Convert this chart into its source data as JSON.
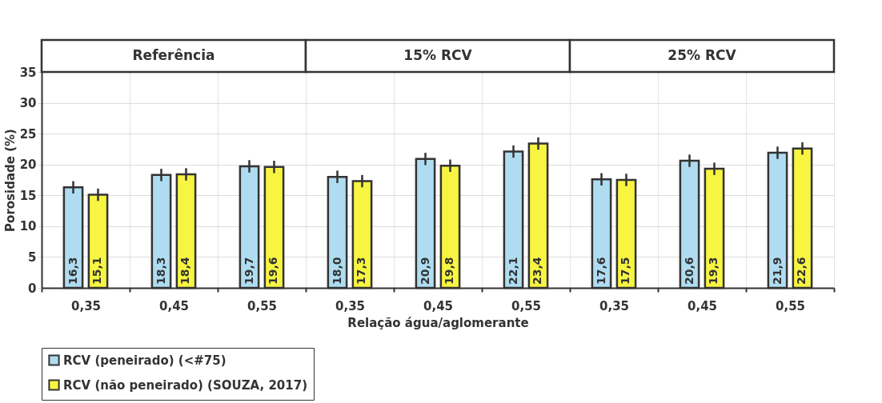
{
  "chart_data": {
    "type": "bar",
    "ylabel": "Porosidade (%)",
    "xlabel": "Relação água/aglomerante",
    "annotations": [
      "Referência",
      "15% RCV",
      "25% RCV"
    ],
    "categories": [
      "0,35",
      "0,45",
      "0,55",
      "0,35",
      "0,45",
      "0,55",
      "0,35",
      "0,45",
      "0,55"
    ],
    "ylim": [
      0,
      35
    ],
    "yticks": [
      0,
      5,
      10,
      15,
      20,
      25,
      30,
      35
    ],
    "grid": true,
    "legend": "bottom left",
    "series": [
      {
        "name": "RCV (peneirado) (<#75)",
        "color": "#afdcf0",
        "values": [
          16.3,
          18.3,
          19.7,
          18.0,
          20.9,
          22.1,
          17.6,
          20.6,
          21.9
        ],
        "errors": [
          1,
          1,
          1,
          1,
          1,
          1,
          1,
          1,
          1
        ],
        "value_labels": [
          "16,3",
          "18,3",
          "19,7",
          "18,0",
          "20,9",
          "22,1",
          "17,6",
          "20,6",
          "21,9"
        ]
      },
      {
        "name": "RCV (não peneirado) (SOUZA, 2017)",
        "color": "#f7f542",
        "values": [
          15.1,
          18.4,
          19.6,
          17.3,
          19.8,
          23.4,
          17.5,
          19.3,
          22.6
        ],
        "errors": [
          1,
          1,
          1,
          1,
          1,
          1,
          1,
          1,
          1
        ],
        "value_labels": [
          "15,1",
          "18,4",
          "19,6",
          "17,3",
          "19,8",
          "23,4",
          "17,5",
          "19,3",
          "22,6"
        ]
      }
    ]
  }
}
